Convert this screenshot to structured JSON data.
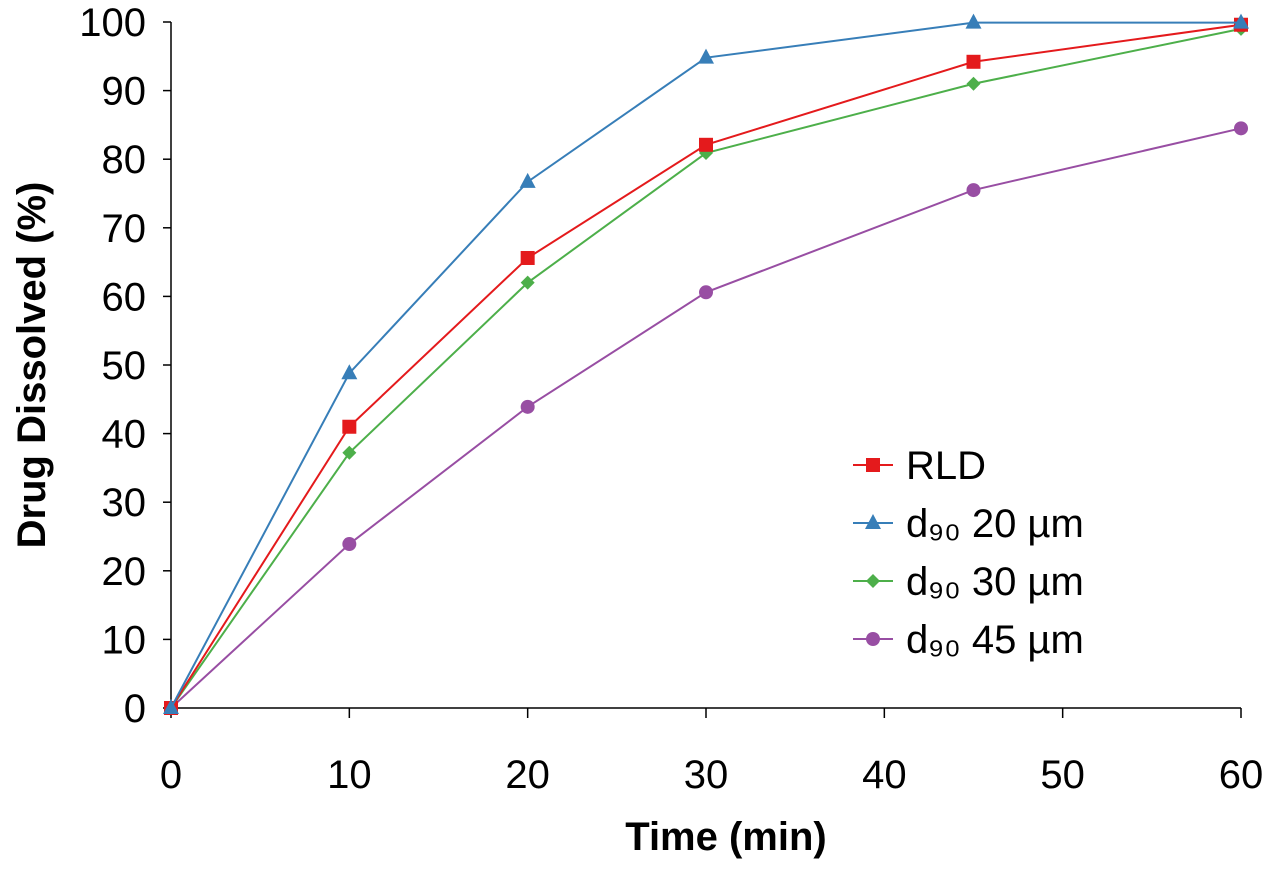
{
  "chart_data": {
    "type": "line",
    "title": "",
    "xlabel": "Time (min)",
    "ylabel": "Drug Dissolved (%)",
    "xlim": [
      0,
      60
    ],
    "ylim": [
      0,
      100
    ],
    "xticks": [
      0,
      10,
      20,
      30,
      40,
      50,
      60
    ],
    "yticks": [
      0,
      10,
      20,
      30,
      40,
      50,
      60,
      70,
      80,
      90,
      100
    ],
    "grid": false,
    "legend_placement": "lower-right",
    "x": [
      0,
      10,
      20,
      30,
      45,
      60
    ],
    "series": [
      {
        "name": "RLD",
        "color": "#e41a1c",
        "marker": "square",
        "values": [
          0,
          41.0,
          65.6,
          82.1,
          94.2,
          99.6
        ]
      },
      {
        "name": "d₉₀ 20 µm",
        "color": "#377eb8",
        "marker": "triangle",
        "values": [
          0,
          48.8,
          76.7,
          94.8,
          99.9,
          99.9
        ]
      },
      {
        "name": "d₉₀ 30 µm",
        "color": "#4daf4a",
        "marker": "diamond",
        "values": [
          0,
          37.2,
          62.0,
          80.9,
          91.0,
          99.0
        ]
      },
      {
        "name": "d₉₀ 45 µm",
        "color": "#984ea3",
        "marker": "circle",
        "values": [
          0,
          23.9,
          43.9,
          60.6,
          75.5,
          84.5
        ]
      }
    ]
  }
}
